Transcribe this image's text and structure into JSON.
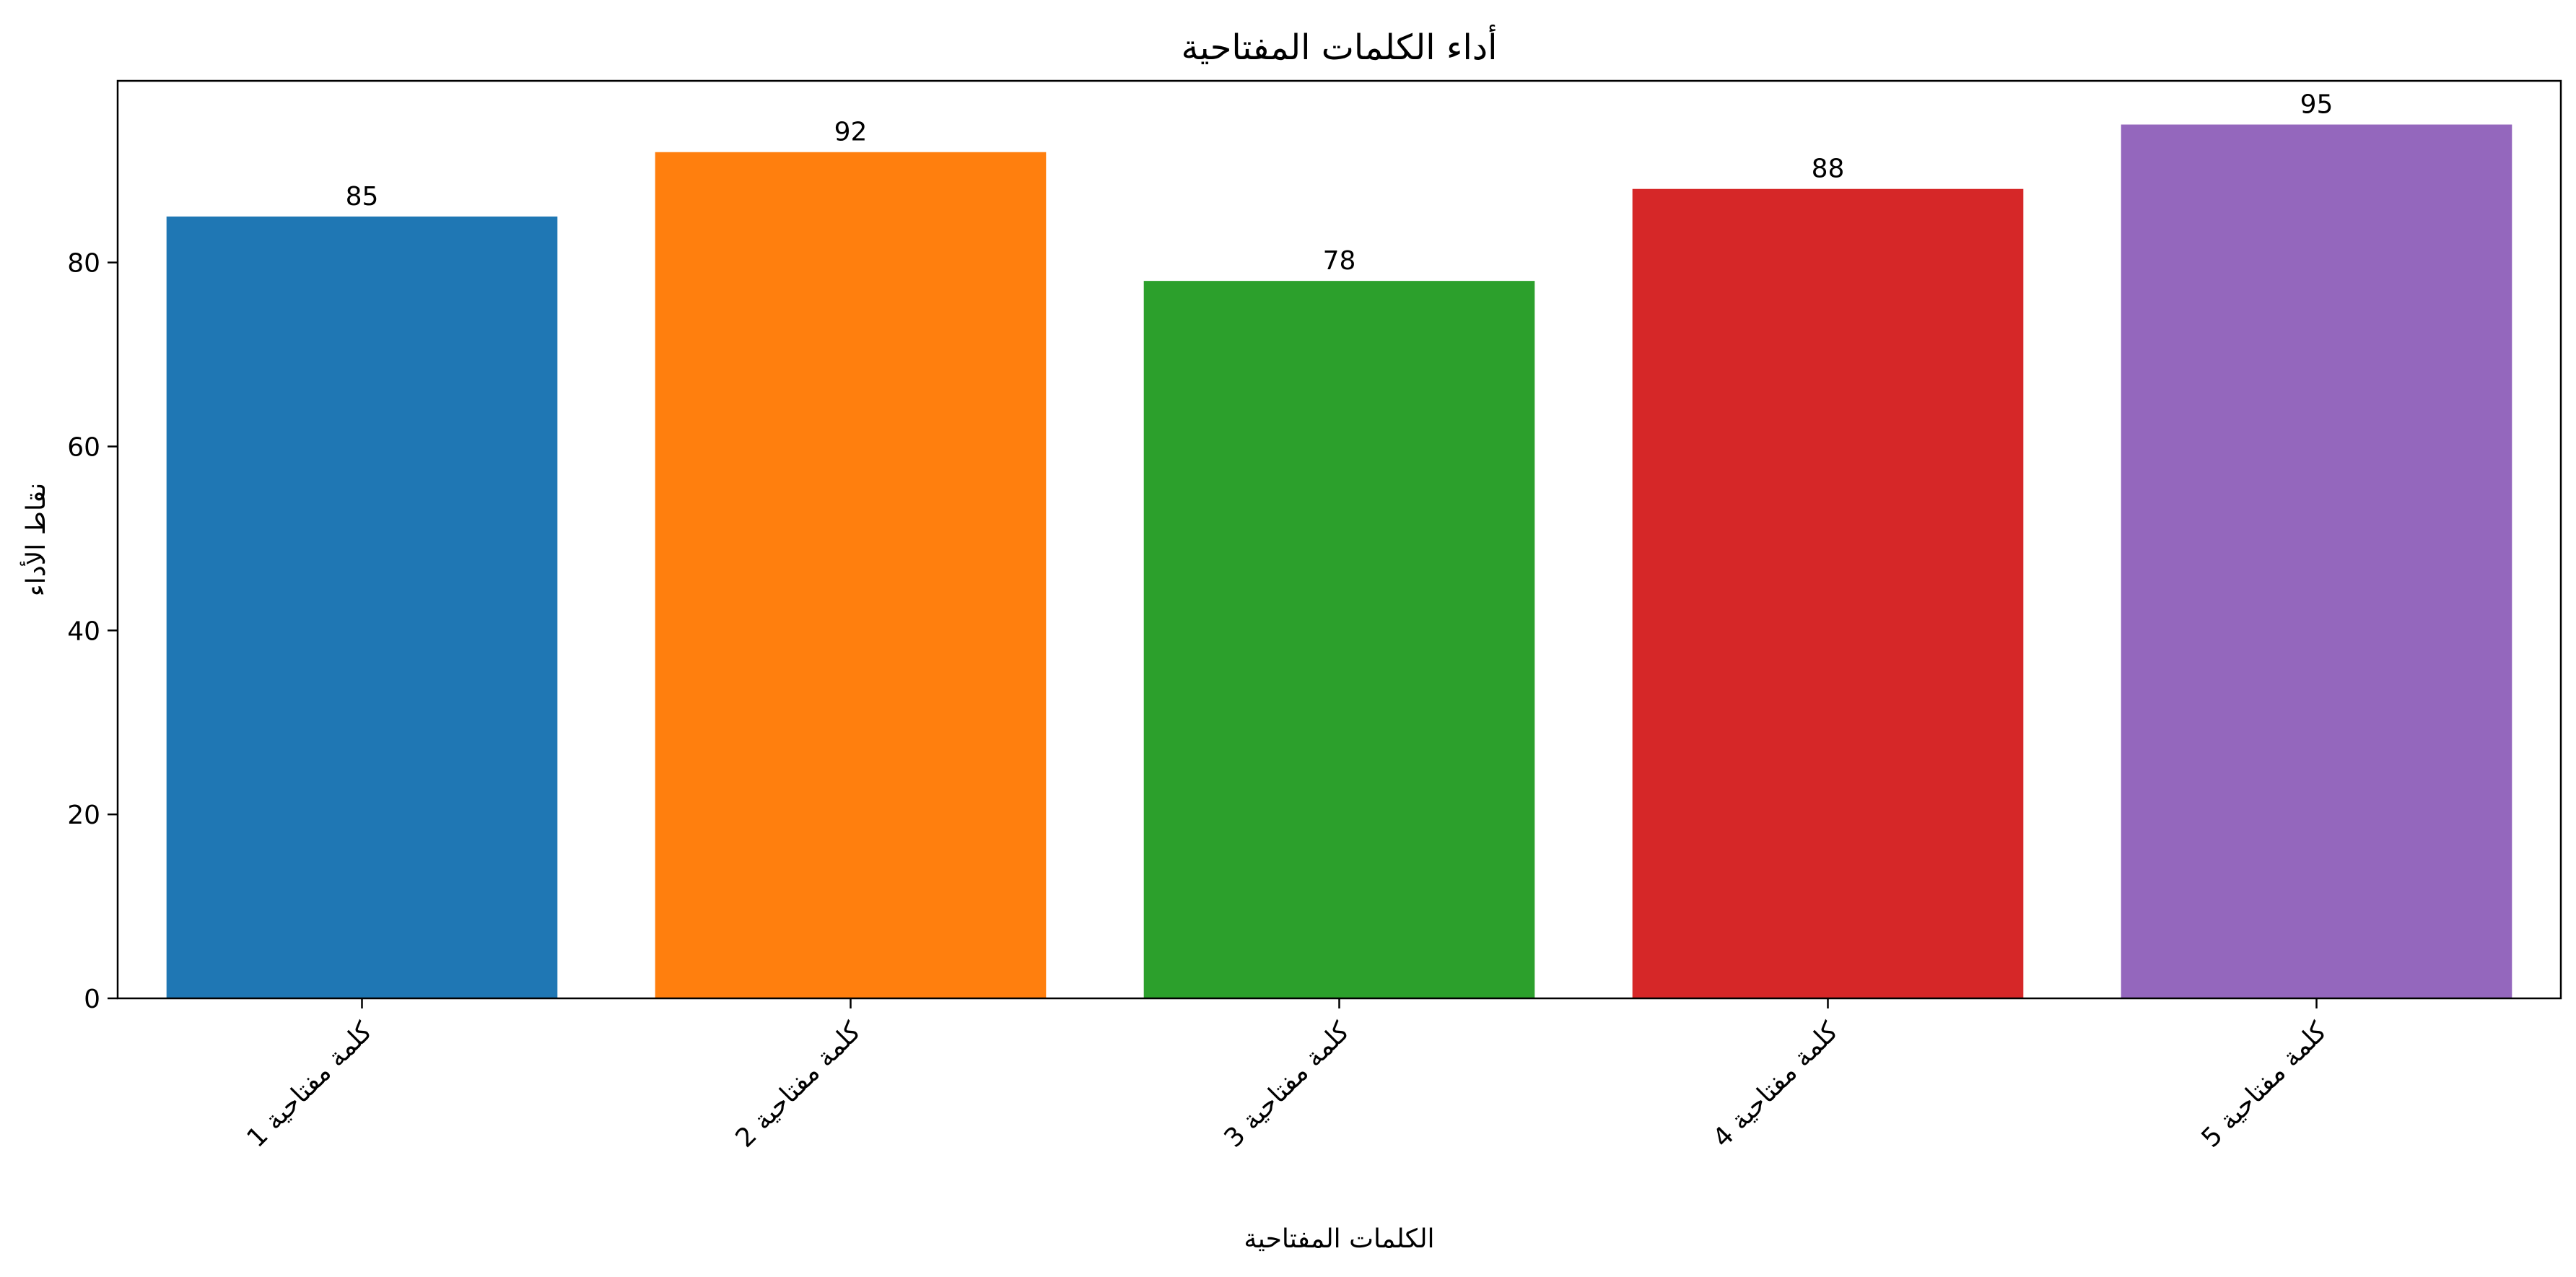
{
  "chart_data": {
    "type": "bar",
    "title": "أداء الكلمات المفتاحية",
    "xlabel": "الكلمات المفتاحية",
    "ylabel": "نقاط الأداء",
    "categories": [
      "كلمة مفتاحية 1",
      "كلمة مفتاحية 2",
      "كلمة مفتاحية 3",
      "كلمة مفتاحية 4",
      "كلمة مفتاحية 5"
    ],
    "values": [
      85,
      92,
      78,
      88,
      95
    ],
    "colors": [
      "#1f77b4",
      "#ff7f0e",
      "#2ca02c",
      "#d62728",
      "#9467bd"
    ],
    "ylim": [
      0,
      99.75
    ],
    "yticks": [
      0,
      20,
      40,
      60,
      80
    ],
    "grid": false,
    "legend": "none"
  }
}
